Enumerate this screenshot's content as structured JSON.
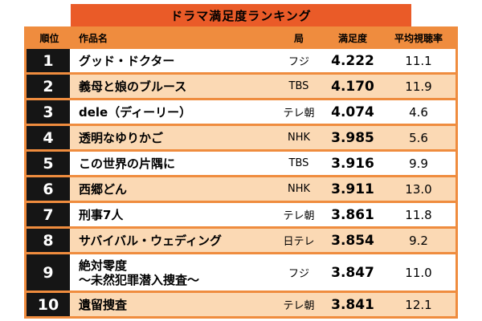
{
  "colors": {
    "banner": "#ea5b28",
    "grid": "#ef8c3e",
    "row_alt": "#fbd9b4",
    "rank_bg": "#151515"
  },
  "chart_data": {
    "type": "table",
    "title": "ドラマ満足度ランキング",
    "columns": [
      "順位",
      "作品名",
      "局",
      "満足度",
      "平均視聴率"
    ],
    "rows": [
      {
        "rank": "1",
        "title": "グッド・ドクター",
        "station": "フジ",
        "score": "4.222",
        "rating": "11.1"
      },
      {
        "rank": "2",
        "title": "義母と娘のブルース",
        "station": "TBS",
        "score": "4.170",
        "rating": "11.9"
      },
      {
        "rank": "3",
        "title": "dele（ディーリー）",
        "station": "テレ朝",
        "score": "4.074",
        "rating": "4.6"
      },
      {
        "rank": "4",
        "title": "透明なゆりかご",
        "station": "NHK",
        "score": "3.985",
        "rating": "5.6"
      },
      {
        "rank": "5",
        "title": "この世界の片隅に",
        "station": "TBS",
        "score": "3.916",
        "rating": "9.9"
      },
      {
        "rank": "6",
        "title": "西郷どん",
        "station": "NHK",
        "score": "3.911",
        "rating": "13.0"
      },
      {
        "rank": "7",
        "title": "刑事7人",
        "station": "テレ朝",
        "score": "3.861",
        "rating": "11.8"
      },
      {
        "rank": "8",
        "title": "サバイバル・ウェディング",
        "station": "日テレ",
        "score": "3.854",
        "rating": "9.2"
      },
      {
        "rank": "9",
        "title": "絶対零度\n〜未然犯罪潜入捜査〜",
        "station": "フジ",
        "score": "3.847",
        "rating": "11.0"
      },
      {
        "rank": "10",
        "title": "遺留捜査",
        "station": "テレ朝",
        "score": "3.841",
        "rating": "12.1"
      }
    ]
  }
}
